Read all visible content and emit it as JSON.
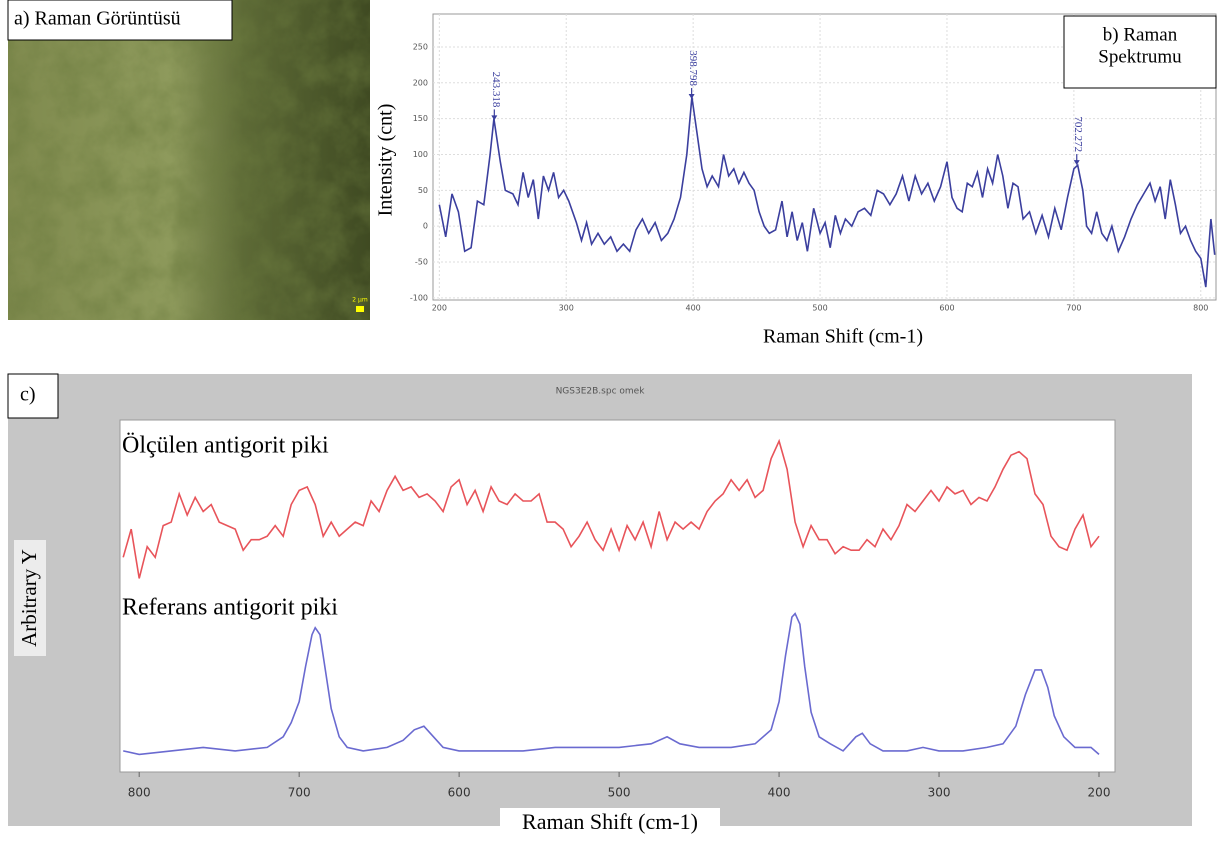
{
  "image_panel": {
    "label": "a) Raman Görüntüsü",
    "scale_label": "2 µm"
  },
  "chart_data": [
    {
      "type": "line",
      "xlabel": "Raman Shift (cm-1)",
      "ylabel": "Intensity (cnt)",
      "title_box": [
        "b) Raman",
        "Spektrumu"
      ],
      "xlim": [
        195,
        812
      ],
      "ylim": [
        -103,
        296
      ],
      "xticks": [
        200,
        300,
        400,
        500,
        600,
        700,
        800
      ],
      "yticks": [
        -100,
        -50,
        0,
        50,
        100,
        150,
        200,
        250
      ],
      "grid": true,
      "annotations": [
        {
          "text": "243.318",
          "x": 243.318
        },
        {
          "text": "398.798",
          "x": 398.798
        },
        {
          "text": "702.272",
          "x": 702.272
        }
      ],
      "series": [
        {
          "color": "#3b3f9e",
          "x": [
            200,
            205,
            210,
            215,
            220,
            225,
            230,
            235,
            240,
            243,
            248,
            252,
            258,
            262,
            266,
            270,
            274,
            278,
            282,
            286,
            290,
            294,
            298,
            302,
            308,
            312,
            316,
            320,
            325,
            330,
            335,
            340,
            345,
            350,
            355,
            360,
            365,
            370,
            375,
            380,
            385,
            390,
            395,
            399,
            403,
            407,
            411,
            415,
            420,
            424,
            428,
            432,
            436,
            440,
            444,
            448,
            452,
            456,
            460,
            465,
            470,
            474,
            478,
            482,
            486,
            490,
            495,
            500,
            504,
            508,
            512,
            516,
            520,
            525,
            530,
            535,
            540,
            545,
            550,
            555,
            560,
            565,
            570,
            575,
            580,
            585,
            590,
            595,
            600,
            604,
            608,
            612,
            616,
            620,
            624,
            628,
            632,
            636,
            640,
            644,
            648,
            652,
            656,
            660,
            665,
            670,
            675,
            680,
            685,
            690,
            695,
            700,
            703,
            707,
            710,
            714,
            718,
            722,
            726,
            730,
            735,
            740,
            745,
            750,
            755,
            760,
            764,
            768,
            772,
            776,
            780,
            784,
            788,
            792,
            796,
            800,
            804,
            808,
            811
          ],
          "values": [
            30,
            -15,
            45,
            20,
            -35,
            -30,
            35,
            30,
            100,
            150,
            90,
            50,
            45,
            30,
            75,
            40,
            65,
            10,
            70,
            50,
            75,
            40,
            50,
            35,
            5,
            -20,
            5,
            -25,
            -10,
            -25,
            -15,
            -35,
            -25,
            -35,
            -5,
            10,
            -10,
            5,
            -20,
            -10,
            10,
            40,
            100,
            180,
            130,
            80,
            55,
            70,
            55,
            100,
            70,
            80,
            60,
            75,
            60,
            50,
            20,
            0,
            -10,
            -5,
            35,
            -15,
            20,
            -20,
            5,
            -35,
            25,
            -10,
            5,
            -30,
            15,
            -10,
            10,
            0,
            20,
            25,
            15,
            50,
            45,
            30,
            45,
            70,
            35,
            70,
            45,
            60,
            35,
            55,
            90,
            40,
            25,
            20,
            60,
            55,
            75,
            40,
            80,
            60,
            100,
            70,
            25,
            60,
            55,
            10,
            20,
            -10,
            15,
            -15,
            25,
            -5,
            40,
            80,
            85,
            50,
            0,
            -10,
            20,
            -10,
            -20,
            0,
            -35,
            -15,
            10,
            30,
            45,
            60,
            35,
            55,
            10,
            65,
            30,
            -10,
            0,
            -20,
            -35,
            -45,
            -85,
            10,
            -40
          ]
        }
      ]
    },
    {
      "type": "line",
      "panel_label": "c)",
      "title": "NGS3E2B.spc  omek",
      "xlabel": "Raman Shift (cm-1)",
      "ylabel": "Arbitrary Y",
      "xlim": [
        812,
        190
      ],
      "ylim": [
        0,
        100
      ],
      "xticks": [
        800,
        700,
        600,
        500,
        400,
        300,
        200
      ],
      "series": [
        {
          "name": "Ölçülen antigorit piki",
          "color": "#e8545a",
          "x": [
            810,
            805,
            800,
            795,
            790,
            785,
            780,
            775,
            770,
            765,
            760,
            755,
            750,
            745,
            740,
            735,
            730,
            725,
            720,
            715,
            710,
            705,
            700,
            695,
            690,
            685,
            680,
            675,
            670,
            665,
            660,
            655,
            650,
            645,
            640,
            635,
            630,
            625,
            620,
            615,
            610,
            605,
            600,
            595,
            590,
            585,
            580,
            575,
            570,
            565,
            560,
            555,
            550,
            545,
            540,
            535,
            530,
            525,
            520,
            515,
            510,
            505,
            500,
            495,
            490,
            485,
            480,
            475,
            470,
            465,
            460,
            455,
            450,
            445,
            440,
            435,
            430,
            425,
            420,
            415,
            410,
            405,
            400,
            395,
            390,
            385,
            380,
            375,
            370,
            365,
            360,
            355,
            350,
            345,
            340,
            335,
            330,
            325,
            320,
            315,
            310,
            305,
            300,
            295,
            290,
            285,
            280,
            275,
            270,
            265,
            260,
            255,
            250,
            245,
            240,
            235,
            230,
            225,
            220,
            215,
            210,
            205,
            200
          ],
          "values": [
            61,
            69,
            55,
            64,
            61,
            70,
            71,
            79,
            73,
            78,
            74,
            76,
            71,
            70,
            69,
            63,
            66,
            66,
            67,
            70,
            67,
            76,
            80,
            81,
            76,
            67,
            71,
            67,
            69,
            71,
            70,
            77,
            74,
            80,
            84,
            80,
            81,
            78,
            79,
            77,
            74,
            81,
            83,
            76,
            80,
            74,
            81,
            77,
            76,
            79,
            77,
            77,
            79,
            71,
            71,
            69,
            64,
            67,
            71,
            66,
            63,
            69,
            63,
            70,
            66,
            71,
            64,
            74,
            66,
            71,
            69,
            71,
            69,
            74,
            77,
            79,
            83,
            80,
            83,
            78,
            80,
            89,
            94,
            86,
            71,
            64,
            70,
            66,
            66,
            62,
            64,
            63,
            63,
            66,
            64,
            69,
            66,
            70,
            76,
            74,
            77,
            80,
            77,
            81,
            79,
            80,
            76,
            78,
            77,
            81,
            86,
            90,
            91,
            89,
            79,
            76,
            67,
            64,
            63,
            69,
            73,
            64,
            67
          ]
        },
        {
          "name": "Referans antigorit piki",
          "color": "#6a6ad0",
          "x": [
            810,
            800,
            780,
            760,
            740,
            720,
            710,
            705,
            700,
            696,
            692,
            690,
            687,
            684,
            680,
            675,
            670,
            660,
            645,
            635,
            628,
            622,
            616,
            610,
            600,
            580,
            560,
            540,
            520,
            500,
            480,
            470,
            462,
            450,
            430,
            415,
            405,
            400,
            396,
            392,
            390,
            387,
            384,
            380,
            375,
            368,
            360,
            352,
            348,
            343,
            335,
            320,
            310,
            300,
            285,
            270,
            260,
            252,
            246,
            240,
            236,
            232,
            228,
            222,
            215,
            205,
            200
          ],
          "values": [
            6,
            5,
            6,
            7,
            6,
            7,
            10,
            14,
            20,
            30,
            39,
            41,
            39,
            30,
            18,
            10,
            7,
            6,
            7,
            9,
            12,
            13,
            10,
            7,
            6,
            6,
            6,
            7,
            7,
            7,
            8,
            10,
            8,
            7,
            7,
            8,
            12,
            20,
            33,
            44,
            45,
            42,
            30,
            17,
            10,
            8,
            6,
            10,
            11,
            8,
            6,
            6,
            7,
            6,
            6,
            7,
            8,
            13,
            22,
            29,
            29,
            24,
            16,
            10,
            7,
            7,
            5
          ]
        }
      ]
    }
  ]
}
